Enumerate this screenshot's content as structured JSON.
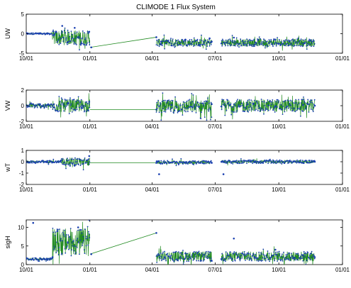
{
  "figure": {
    "title": "CLIMODE 1 Flux System"
  },
  "chart_data": [
    {
      "type": "scatter",
      "ylabel": "UW",
      "ylim": [
        -5,
        5
      ],
      "yticks": [
        "5",
        "0",
        "-5"
      ],
      "ytick_values": [
        5,
        0,
        -5
      ],
      "xticks": [
        "10/01",
        "01/01",
        "04/01",
        "07/01",
        "10/01",
        "01/01"
      ],
      "xtick_values": [
        0,
        92,
        182,
        273,
        365,
        457
      ],
      "xlim": [
        0,
        457
      ],
      "x": [
        0,
        20,
        40,
        52,
        60,
        70,
        80,
        91,
        94,
        188,
        195,
        210,
        230,
        250,
        265,
        268,
        282,
        300,
        330,
        360,
        380,
        410
      ],
      "y": [
        0.2,
        0.1,
        -0.3,
        2.0,
        -2.2,
        1.5,
        -2.5,
        0.5,
        -3.5,
        -0.9,
        -2.0,
        -3.0,
        -1.5,
        -2.8,
        -1.2,
        -2.0,
        -2.5,
        -1.0,
        -2.8,
        -1.5,
        -2.0,
        -1.8
      ],
      "line_color": "#228b22",
      "marker_color": "#1a3fb0",
      "series_bands": [
        {
          "x0": 0,
          "x1": 38,
          "center": 0.0,
          "amp": 0.3
        },
        {
          "x0": 38,
          "x1": 92,
          "center": -1.0,
          "amp": 2.6
        },
        {
          "x0": 188,
          "x1": 268,
          "center": -2.3,
          "amp": 1.3
        },
        {
          "x0": 282,
          "x1": 417,
          "center": -2.3,
          "amp": 1.3
        }
      ]
    },
    {
      "type": "scatter",
      "ylabel": "VW",
      "ylim": [
        -2,
        2
      ],
      "yticks": [
        "2",
        "0",
        "-2"
      ],
      "ytick_values": [
        2,
        0,
        -2
      ],
      "xticks": [
        "10/01",
        "01/01",
        "04/01",
        "07/01",
        "10/01",
        "01/01"
      ],
      "xtick_values": [
        0,
        92,
        182,
        273,
        365,
        457
      ],
      "xlim": [
        0,
        457
      ],
      "x": [
        0,
        20,
        40,
        60,
        80,
        91,
        188,
        210,
        240,
        268,
        282,
        320,
        360,
        400,
        417
      ],
      "y": [
        0.0,
        0.1,
        -0.2,
        0.3,
        -0.3,
        0.5,
        -0.5,
        0.1,
        -0.2,
        0.2,
        -0.1,
        0.2,
        -0.1,
        0.1,
        0.0
      ],
      "line_color": "#228b22",
      "marker_color": "#1a3fb0",
      "series_bands": [
        {
          "x0": 0,
          "x1": 38,
          "center": 0.0,
          "amp": 0.4
        },
        {
          "x0": 38,
          "x1": 92,
          "center": 0.0,
          "amp": 1.1
        },
        {
          "x0": 188,
          "x1": 268,
          "center": -0.1,
          "amp": 1.1
        },
        {
          "x0": 282,
          "x1": 417,
          "center": 0.0,
          "amp": 1.1
        }
      ]
    },
    {
      "type": "scatter",
      "ylabel": "wT",
      "ylim": [
        -2,
        1
      ],
      "yticks": [
        "1",
        "0",
        "-1",
        "-2"
      ],
      "ytick_values": [
        1,
        0,
        -1,
        -2
      ],
      "xticks": [
        "10/01",
        "01/01",
        "04/01",
        "07/01",
        "10/01",
        "01/01"
      ],
      "xtick_values": [
        0,
        92,
        182,
        273,
        365,
        457
      ],
      "xlim": [
        0,
        457
      ],
      "x": [
        0,
        30,
        50,
        70,
        91,
        188,
        192,
        230,
        268,
        282,
        285,
        330,
        380,
        417
      ],
      "y": [
        0.0,
        0.0,
        0.1,
        -0.3,
        0.5,
        -0.1,
        -1.1,
        -0.05,
        -0.1,
        0.0,
        -1.1,
        0.0,
        0.05,
        0.0
      ],
      "line_color": "#228b22",
      "marker_color": "#1a3fb0",
      "series_bands": [
        {
          "x0": 0,
          "x1": 50,
          "center": 0.0,
          "amp": 0.15
        },
        {
          "x0": 50,
          "x1": 92,
          "center": 0.0,
          "amp": 0.5
        },
        {
          "x0": 188,
          "x1": 268,
          "center": -0.05,
          "amp": 0.2
        },
        {
          "x0": 282,
          "x1": 417,
          "center": 0.0,
          "amp": 0.2
        }
      ]
    },
    {
      "type": "scatter",
      "ylabel": "sigH",
      "ylim": [
        0,
        12
      ],
      "yticks": [
        "10",
        "5",
        "0"
      ],
      "ytick_values": [
        10,
        5,
        0
      ],
      "xticks": [
        "10/01",
        "01/01",
        "04/01",
        "07/01",
        "10/01",
        "01/01"
      ],
      "xtick_values": [
        0,
        92,
        182,
        273,
        365,
        457
      ],
      "xlim": [
        0,
        457
      ],
      "x": [
        0,
        10,
        30,
        38,
        45,
        60,
        75,
        91,
        94,
        188,
        200,
        230,
        268,
        282,
        300,
        330,
        360,
        400,
        417
      ],
      "y": [
        1.5,
        11.2,
        1.5,
        2.0,
        9.0,
        6.0,
        10.0,
        12.0,
        2.8,
        8.5,
        2.0,
        3.0,
        1.0,
        1.5,
        7.0,
        2.0,
        4.0,
        2.5,
        2.0
      ],
      "line_color": "#228b22",
      "marker_color": "#1a3fb0",
      "series_bands": [
        {
          "x0": 0,
          "x1": 38,
          "center": 1.5,
          "amp": 0.4
        },
        {
          "x0": 38,
          "x1": 92,
          "center": 6.0,
          "amp": 5.0
        },
        {
          "x0": 188,
          "x1": 268,
          "center": 2.2,
          "amp": 1.8
        },
        {
          "x0": 282,
          "x1": 417,
          "center": 2.2,
          "amp": 1.8
        }
      ]
    }
  ]
}
